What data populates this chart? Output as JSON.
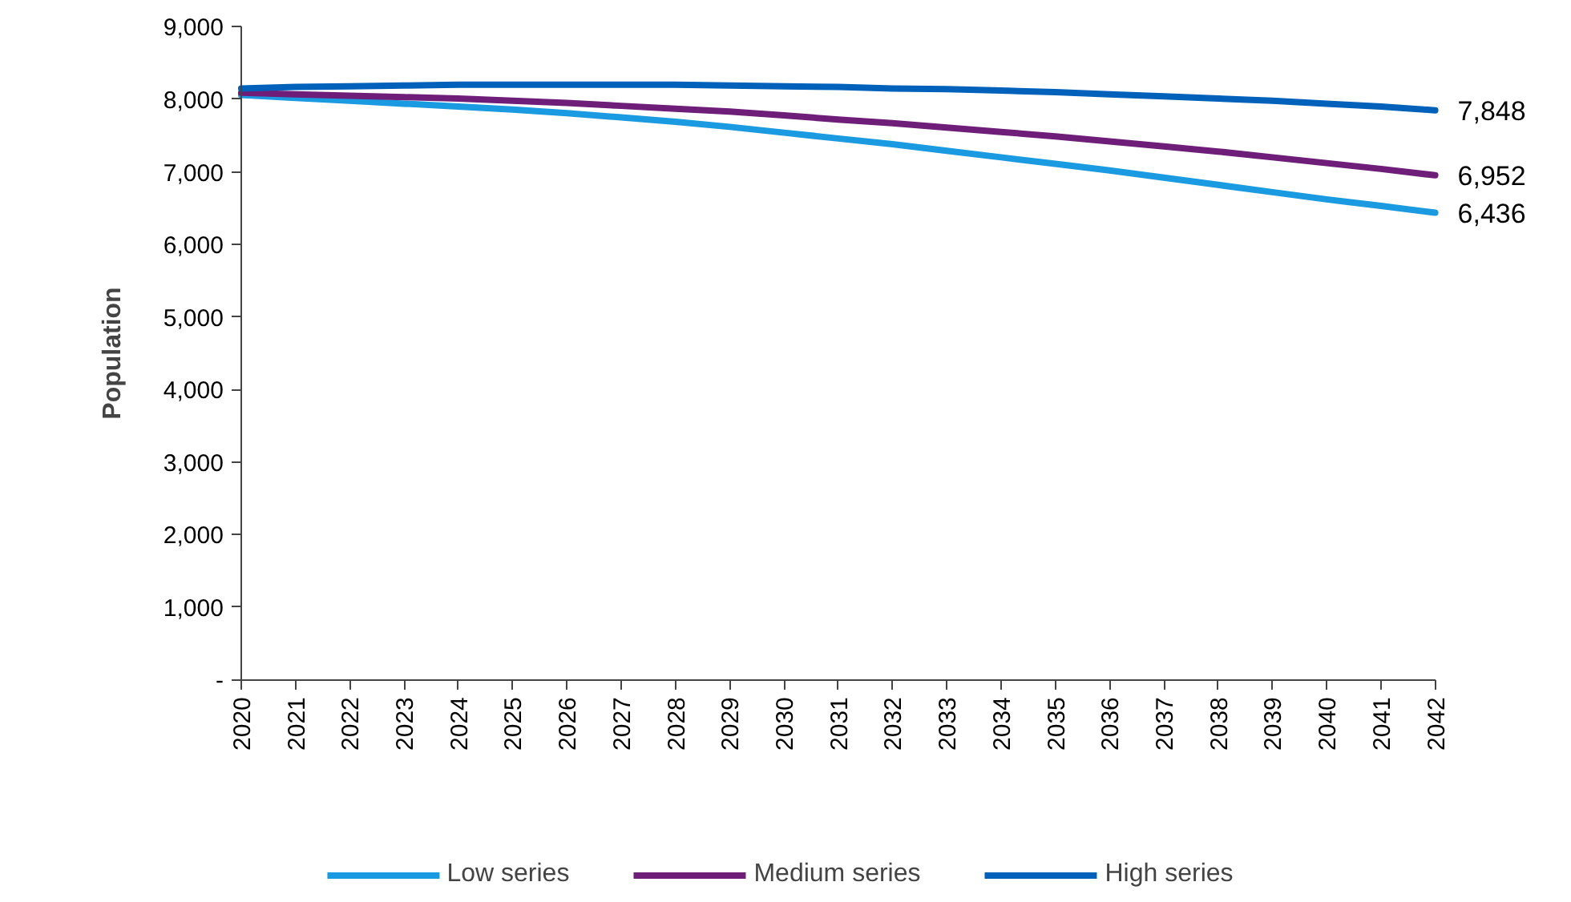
{
  "chart_data": {
    "type": "line",
    "ylabel": "Population",
    "categories": [
      "2020",
      "2021",
      "2022",
      "2023",
      "2024",
      "2025",
      "2026",
      "2027",
      "2028",
      "2029",
      "2030",
      "2031",
      "2032",
      "2033",
      "2034",
      "2035",
      "2036",
      "2037",
      "2038",
      "2039",
      "2040",
      "2041",
      "2042"
    ],
    "series": [
      {
        "name": "Low series",
        "color": "#1a9ae0",
        "values": [
          8060,
          8020,
          7980,
          7940,
          7900,
          7860,
          7810,
          7750,
          7690,
          7620,
          7540,
          7460,
          7380,
          7290,
          7200,
          7110,
          7020,
          6920,
          6820,
          6720,
          6620,
          6530,
          6436
        ],
        "value_labels": [
          null,
          null,
          null,
          null,
          null,
          null,
          null,
          null,
          null,
          null,
          null,
          null,
          null,
          null,
          null,
          null,
          null,
          null,
          null,
          null,
          null,
          null,
          "6,436"
        ]
      },
      {
        "name": "Medium series",
        "color": "#6e1e78",
        "values": [
          8090,
          8070,
          8050,
          8030,
          8010,
          7980,
          7950,
          7910,
          7870,
          7830,
          7780,
          7720,
          7670,
          7610,
          7550,
          7490,
          7420,
          7350,
          7280,
          7200,
          7120,
          7040,
          6952
        ],
        "value_labels": [
          null,
          null,
          null,
          null,
          null,
          null,
          null,
          null,
          null,
          null,
          null,
          null,
          null,
          null,
          null,
          null,
          null,
          null,
          null,
          null,
          null,
          null,
          "6,952"
        ]
      },
      {
        "name": "High series",
        "color": "#0061bb",
        "values": [
          8150,
          8170,
          8180,
          8190,
          8200,
          8200,
          8200,
          8200,
          8200,
          8190,
          8180,
          8170,
          8150,
          8140,
          8120,
          8100,
          8070,
          8040,
          8010,
          7980,
          7940,
          7900,
          7848
        ],
        "value_labels": [
          null,
          null,
          null,
          null,
          null,
          null,
          null,
          null,
          null,
          null,
          null,
          null,
          null,
          null,
          null,
          null,
          null,
          null,
          null,
          null,
          null,
          null,
          "7,848"
        ]
      }
    ],
    "ylim": [
      0,
      9000
    ],
    "yticks": [
      {
        "value": 0,
        "label": "-"
      },
      {
        "value": 1000,
        "label": "1,000"
      },
      {
        "value": 2000,
        "label": "2,000"
      },
      {
        "value": 3000,
        "label": "3,000"
      },
      {
        "value": 4000,
        "label": "4,000"
      },
      {
        "value": 5000,
        "label": "5,000"
      },
      {
        "value": 6000,
        "label": "6,000"
      },
      {
        "value": 7000,
        "label": "7,000"
      },
      {
        "value": 8000,
        "label": "8,000"
      },
      {
        "value": 9000,
        "label": "9,000"
      }
    ],
    "grid": false,
    "legend": "bottom",
    "line_style": "solid",
    "marker": "none"
  }
}
